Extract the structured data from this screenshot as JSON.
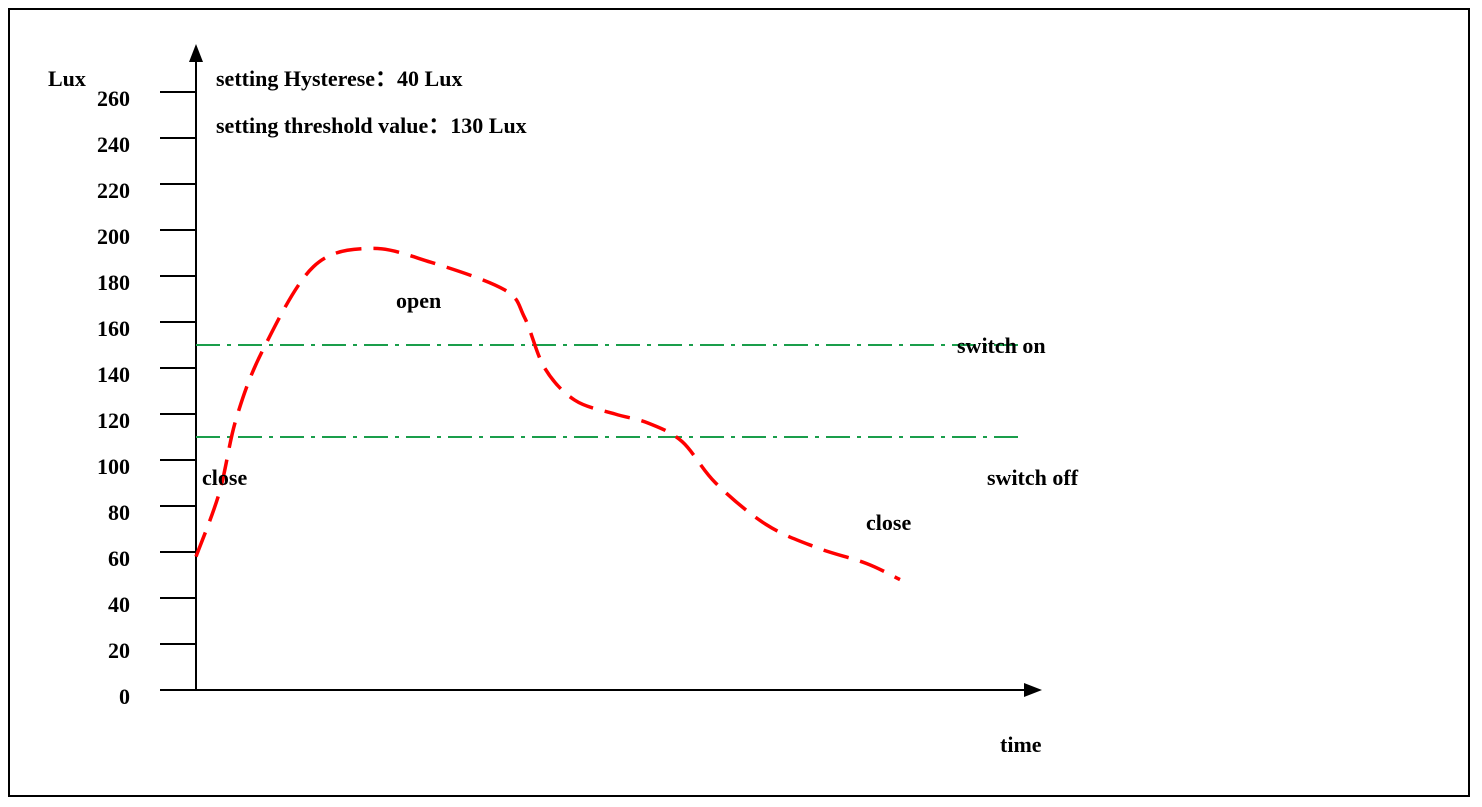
{
  "chart_data": {
    "type": "line",
    "ylabel": "Lux",
    "xlabel": "time",
    "yticks": [
      "0",
      "20",
      "40",
      "60",
      "80",
      "100",
      "120",
      "140",
      "160",
      "180",
      "200",
      "220",
      "240",
      "260"
    ],
    "ylim": [
      0,
      260
    ],
    "settings": {
      "hysteresis": "setting Hysterese：40 Lux",
      "threshold": "setting threshold value：130 Lux"
    },
    "thresholds": [
      {
        "label": "switch on",
        "value": 150,
        "color": "#1a9e4b"
      },
      {
        "label": "switch off",
        "value": 110,
        "color": "#1a9e4b"
      }
    ],
    "series": [
      {
        "color": "#ff0000",
        "style": "dashed",
        "points": [
          [
            0,
            58
          ],
          [
            7,
            86
          ],
          [
            12,
            118
          ],
          [
            20,
            148
          ],
          [
            35,
            184
          ],
          [
            52,
            192
          ],
          [
            70,
            186
          ],
          [
            92,
            174
          ],
          [
            98,
            162
          ],
          [
            104,
            140
          ],
          [
            113,
            126
          ],
          [
            125,
            120
          ],
          [
            135,
            116
          ],
          [
            145,
            108
          ],
          [
            155,
            90
          ],
          [
            170,
            72
          ],
          [
            185,
            62
          ],
          [
            200,
            55
          ],
          [
            210,
            48
          ]
        ]
      }
    ],
    "annotations": {
      "open": "open",
      "close_left": "close",
      "close_right": "close"
    }
  }
}
